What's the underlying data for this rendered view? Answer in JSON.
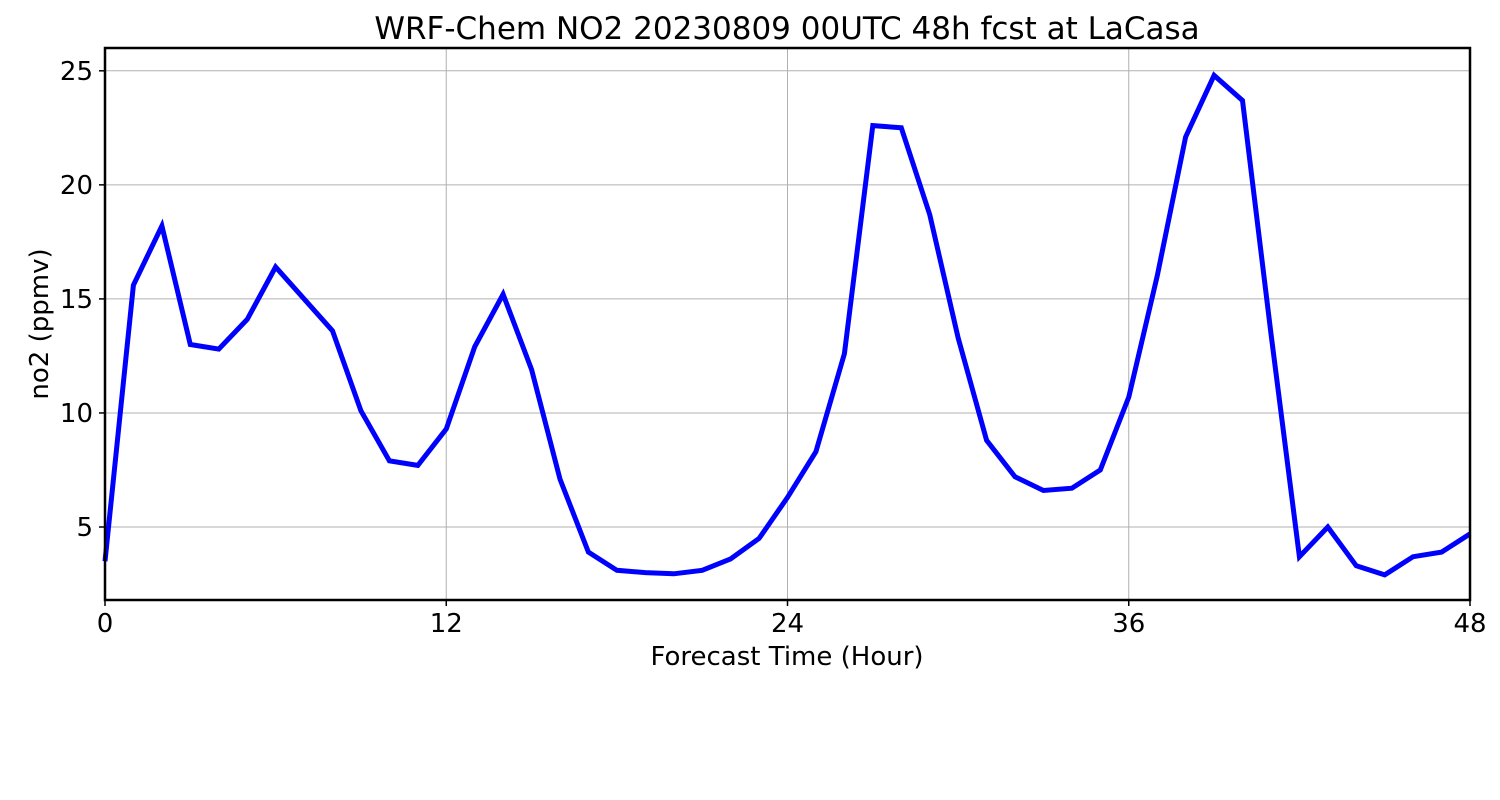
{
  "chart_data": {
    "type": "line",
    "title": "WRF-Chem NO2  20230809 00UTC 48h fcst at LaCasa",
    "xlabel": "Forecast Time (Hour)",
    "ylabel": "no2  (ppmv)",
    "xlim": [
      0,
      48
    ],
    "ylim": [
      1.8,
      26
    ],
    "xticks": [
      0,
      12,
      24,
      36,
      48
    ],
    "yticks": [
      5,
      10,
      15,
      20,
      25
    ],
    "grid": true,
    "line_color": "#0000ff",
    "series": [
      {
        "x": [
          0,
          1,
          2,
          3,
          4,
          5,
          6,
          7,
          8,
          9,
          10,
          11,
          12,
          13,
          14,
          15,
          16,
          17,
          18,
          19,
          20,
          21,
          22,
          23,
          24,
          25,
          26,
          27,
          28,
          29,
          30,
          31,
          32,
          33,
          34,
          35,
          36,
          37,
          38,
          39,
          40,
          41,
          42,
          43,
          44,
          45,
          46,
          47,
          48
        ],
        "values": [
          3.5,
          15.6,
          18.2,
          13.0,
          12.8,
          14.1,
          16.4,
          15.0,
          13.6,
          10.1,
          7.9,
          7.7,
          9.3,
          12.9,
          15.2,
          11.9,
          7.1,
          3.9,
          3.1,
          3.0,
          2.95,
          3.1,
          3.6,
          4.5,
          6.3,
          8.3,
          12.6,
          22.6,
          22.5,
          18.7,
          13.3,
          8.8,
          7.2,
          6.6,
          6.7,
          7.5,
          10.7,
          16.0,
          22.1,
          24.8,
          23.7,
          13.5,
          3.7,
          5.0,
          3.3,
          2.9,
          3.7,
          3.9,
          4.7
        ]
      }
    ]
  }
}
